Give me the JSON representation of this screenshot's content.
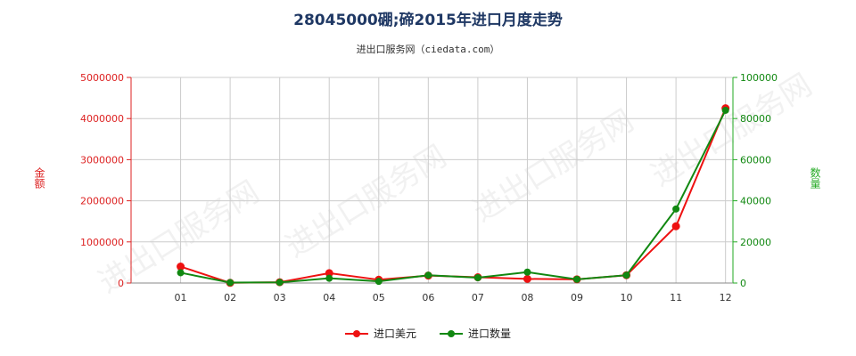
{
  "chart_data": {
    "type": "line",
    "title": "28045000硼;碲2015年进口月度走势",
    "subtitle": "进出口服务网（ciedata.com）",
    "categories": [
      "01",
      "02",
      "03",
      "04",
      "05",
      "06",
      "07",
      "08",
      "09",
      "10",
      "11",
      "12"
    ],
    "y_left": {
      "label": "金额",
      "range": [
        0,
        5000000
      ],
      "ticks": [
        "0",
        "1000000",
        "2000000",
        "3000000",
        "4000000",
        "5000000"
      ],
      "color": "#dd2222"
    },
    "y_right": {
      "label": "数量",
      "range": [
        0,
        100000
      ],
      "ticks": [
        "0",
        "20000",
        "40000",
        "60000",
        "80000",
        "100000"
      ],
      "color": "#22aa22"
    },
    "series": [
      {
        "name": "进口美元",
        "axis": "left",
        "color": "#ee1111",
        "values": [
          400000,
          5000,
          20000,
          240000,
          80000,
          180000,
          140000,
          100000,
          90000,
          190000,
          1380000,
          4250000
        ]
      },
      {
        "name": "进口数量",
        "axis": "right",
        "color": "#118811",
        "values": [
          5000,
          200,
          300,
          2300,
          800,
          3800,
          2600,
          5300,
          1800,
          3800,
          36000,
          84000
        ]
      }
    ],
    "grid": true,
    "legend_position": "bottom",
    "watermark": "进出口服务网"
  }
}
